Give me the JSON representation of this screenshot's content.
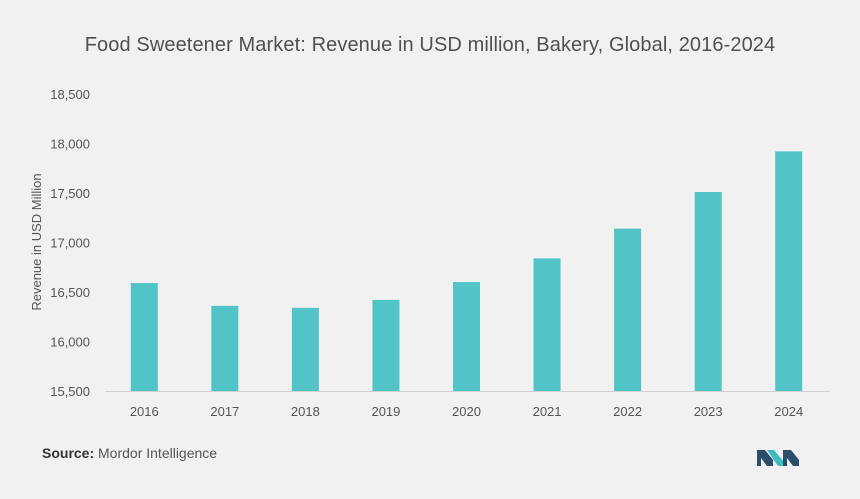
{
  "chart_data": {
    "type": "bar",
    "title": "Food Sweetener Market: Revenue in USD million, Bakery, Global, 2016-2024",
    "xlabel": "",
    "ylabel": "Revenue in USD Million",
    "categories": [
      "2016",
      "2017",
      "2018",
      "2019",
      "2020",
      "2021",
      "2022",
      "2023",
      "2024"
    ],
    "values": [
      16590,
      16360,
      16340,
      16420,
      16600,
      16840,
      17140,
      17510,
      17920
    ],
    "ylim": [
      15500,
      18500
    ],
    "yticks": [
      15500,
      16000,
      16500,
      17000,
      17500,
      18000,
      18500
    ],
    "ytick_labels": [
      "15,500",
      "16,000",
      "16,500",
      "17,000",
      "17,500",
      "18,000",
      "18,500"
    ],
    "grid": false,
    "bar_color": "#52c3c6"
  },
  "source": {
    "label": "Source:",
    "text": "Mordor Intelligence"
  },
  "colors": {
    "background": "#f1f1f1",
    "logo_dark": "#2a4e6c",
    "logo_teal": "#3dbcc4"
  }
}
